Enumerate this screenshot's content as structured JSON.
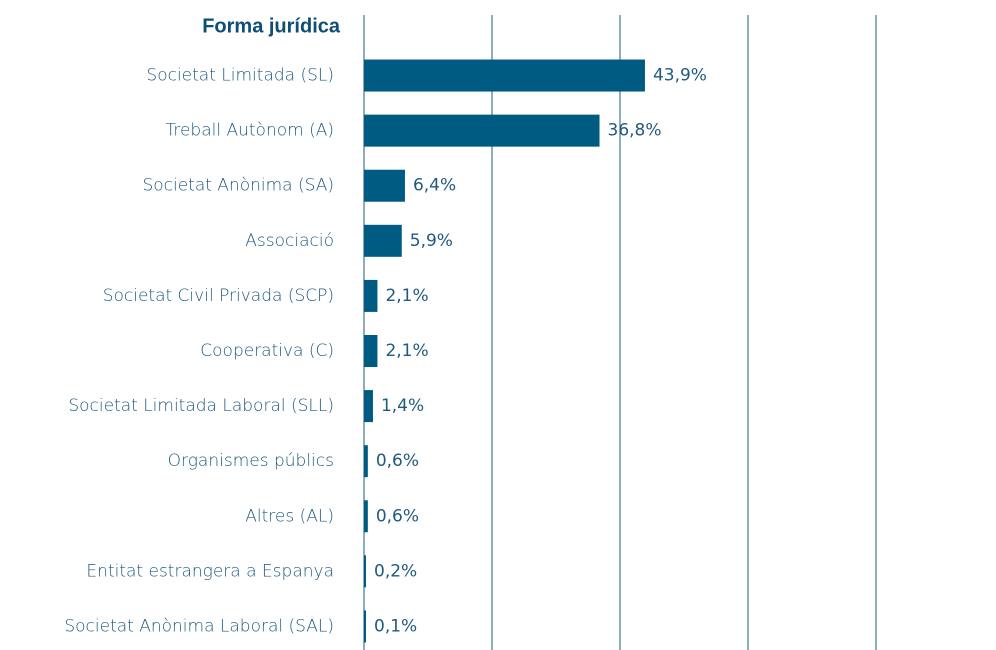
{
  "chart_data": {
    "type": "bar",
    "orientation": "horizontal",
    "title": "Forma jurídica",
    "categories": [
      "Societat Limitada (SL)",
      "Treball Autònom (A)",
      "Societat Anònima (SA)",
      "Associació",
      "Societat Civil Privada (SCP)",
      "Cooperativa (C)",
      "Societat Limitada Laboral (SLL)",
      "Organismes públics",
      "Altres (AL)",
      "Entitat estrangera a Espanya",
      "Societat Anònima Laboral (SAL)"
    ],
    "values": [
      43.9,
      36.8,
      6.4,
      5.9,
      2.1,
      2.1,
      1.4,
      0.6,
      0.6,
      0.2,
      0.1
    ],
    "value_labels": [
      "43,9%",
      "36,8%",
      "6,4%",
      "5,9%",
      "2,1%",
      "2,1%",
      "1,4%",
      "0,6%",
      "0,6%",
      "0,2%",
      "0,1%"
    ],
    "color": "#005b82",
    "xlim": [
      0,
      80
    ],
    "xticks": [
      0,
      20,
      40,
      60,
      80
    ],
    "grid": true
  }
}
